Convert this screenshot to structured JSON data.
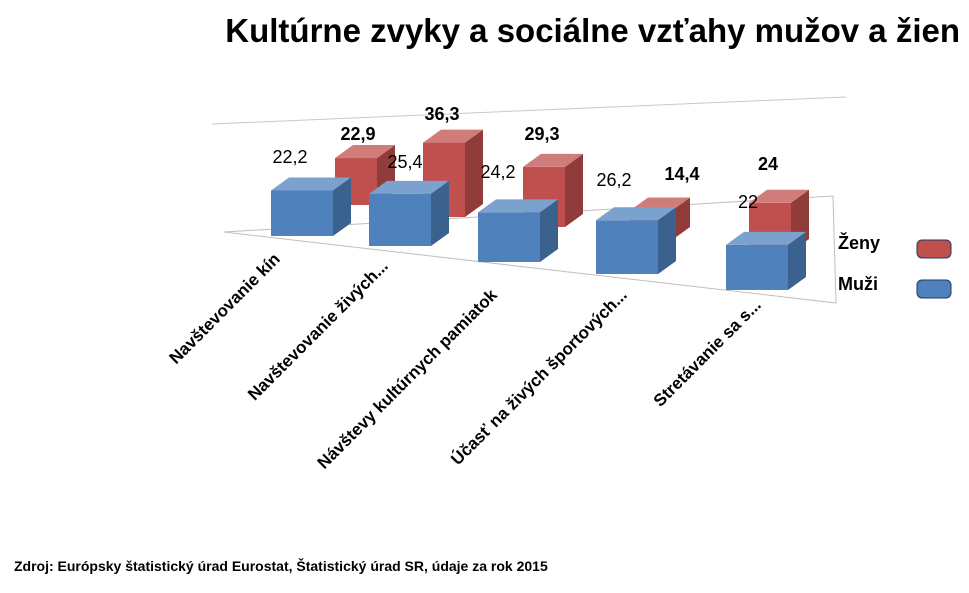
{
  "title": "Kultúrne zvyky a sociálne vzťahy mužov a žien",
  "source": "Zdroj: Európsky štatistický úrad Eurostat, Štatistický úrad SR, údaje za rok 2015",
  "colors": {
    "zeny": "#c0504d",
    "muzi": "#4f81bd"
  },
  "chart_data": {
    "type": "bar",
    "categories": [
      "Navštevovanie kín",
      "Navštevovanie živých...",
      "Návštevy kultúrnych pamiatok",
      "Účasť na živých športových...",
      "Stretávanie sa s..."
    ],
    "series": [
      {
        "name": "Muži",
        "values": [
          22.2,
          25.4,
          24.2,
          26.2,
          22
        ],
        "labels": [
          "22,2",
          "25,4",
          "24,2",
          "26,2",
          "22"
        ]
      },
      {
        "name": "Ženy",
        "values": [
          22.9,
          36.3,
          29.3,
          14.4,
          24
        ],
        "labels": [
          "22,9",
          "36,3",
          "29,3",
          "14,4",
          "24"
        ]
      }
    ],
    "legend_position": "right",
    "grid": false
  }
}
